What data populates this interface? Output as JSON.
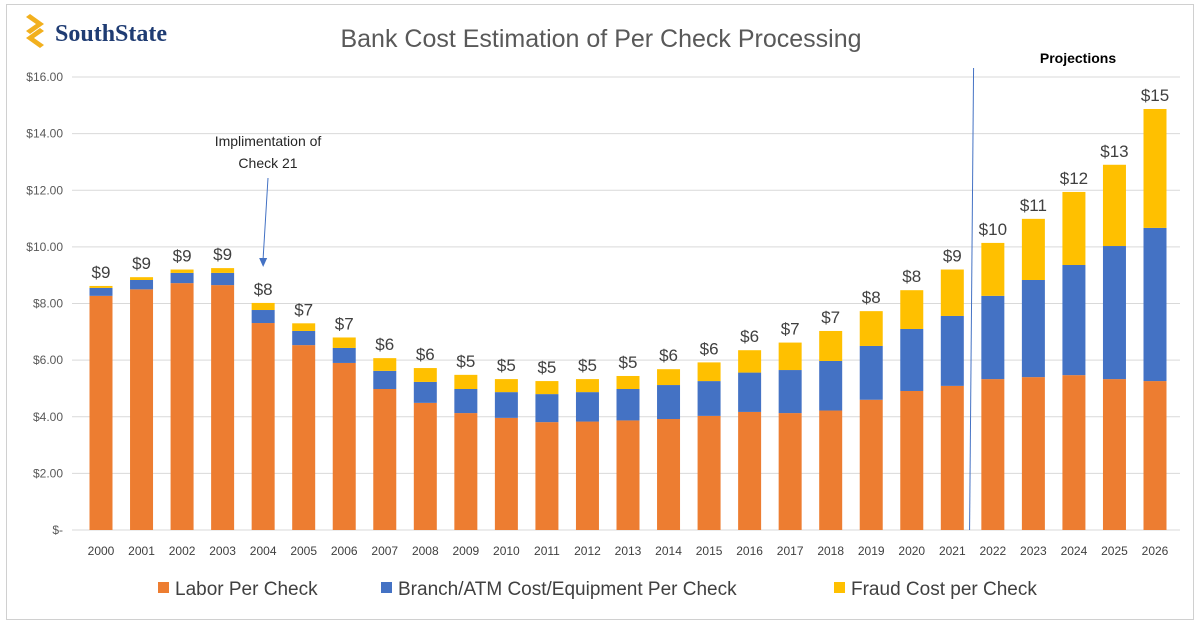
{
  "logo": {
    "text": "SouthState",
    "color": "#1f3c73",
    "mark_color": "#f2b01e"
  },
  "chart_data": {
    "type": "bar",
    "stacked": true,
    "title": "Bank Cost Estimation of Per Check Processing",
    "xlabel": "",
    "ylabel": "",
    "ylim": [
      0,
      16
    ],
    "yticks": [
      0,
      2,
      4,
      6,
      8,
      10,
      12,
      14,
      16
    ],
    "ytick_labels": [
      "$-",
      "$2.00",
      "$4.00",
      "$6.00",
      "$8.00",
      "$10.00",
      "$12.00",
      "$14.00",
      "$16.00"
    ],
    "grid": true,
    "legend_position": "bottom",
    "categories": [
      "2000",
      "2001",
      "2002",
      "2003",
      "2004",
      "2005",
      "2006",
      "2007",
      "2008",
      "2009",
      "2010",
      "2011",
      "2012",
      "2013",
      "2014",
      "2015",
      "2016",
      "2017",
      "2018",
      "2019",
      "2020",
      "2021",
      "2022",
      "2023",
      "2024",
      "2025",
      "2026"
    ],
    "series": [
      {
        "name": "Labor Per Check",
        "color": "#ed7d31",
        "values": [
          8.27,
          8.5,
          8.72,
          8.65,
          7.31,
          6.53,
          5.9,
          4.98,
          4.49,
          4.13,
          3.96,
          3.81,
          3.83,
          3.87,
          3.92,
          4.03,
          4.17,
          4.13,
          4.22,
          4.6,
          4.91,
          5.09,
          5.33,
          5.4,
          5.47,
          5.33,
          5.26
        ]
      },
      {
        "name": "Branch/ATM Cost/Equipment Per Check",
        "color": "#4472c4",
        "values": [
          0.28,
          0.33,
          0.36,
          0.43,
          0.46,
          0.5,
          0.53,
          0.64,
          0.74,
          0.85,
          0.91,
          0.99,
          1.04,
          1.11,
          1.2,
          1.23,
          1.39,
          1.52,
          1.75,
          1.9,
          2.19,
          2.47,
          2.94,
          3.43,
          3.89,
          4.7,
          5.41
        ]
      },
      {
        "name": "Fraud Cost per Check",
        "color": "#ffc000",
        "values": [
          0.07,
          0.1,
          0.12,
          0.17,
          0.25,
          0.27,
          0.37,
          0.45,
          0.49,
          0.5,
          0.46,
          0.46,
          0.46,
          0.46,
          0.56,
          0.66,
          0.79,
          0.97,
          1.06,
          1.23,
          1.37,
          1.64,
          1.87,
          2.16,
          2.58,
          2.87,
          4.2
        ]
      }
    ],
    "total_labels": [
      "$9",
      "$9",
      "$9",
      "$9",
      "$8",
      "$7",
      "$7",
      "$6",
      "$6",
      "$5",
      "$5",
      "$5",
      "$5",
      "$5",
      "$6",
      "$6",
      "$6",
      "$7",
      "$7",
      "$8",
      "$8",
      "$9",
      "$10",
      "$11",
      "$12",
      "$13",
      "$15"
    ],
    "annotations": {
      "check21": {
        "lines": [
          "Implimentation of",
          "Check 21"
        ],
        "year": "2004"
      },
      "projections": {
        "label": "Projections",
        "from_year": "2022"
      }
    }
  }
}
